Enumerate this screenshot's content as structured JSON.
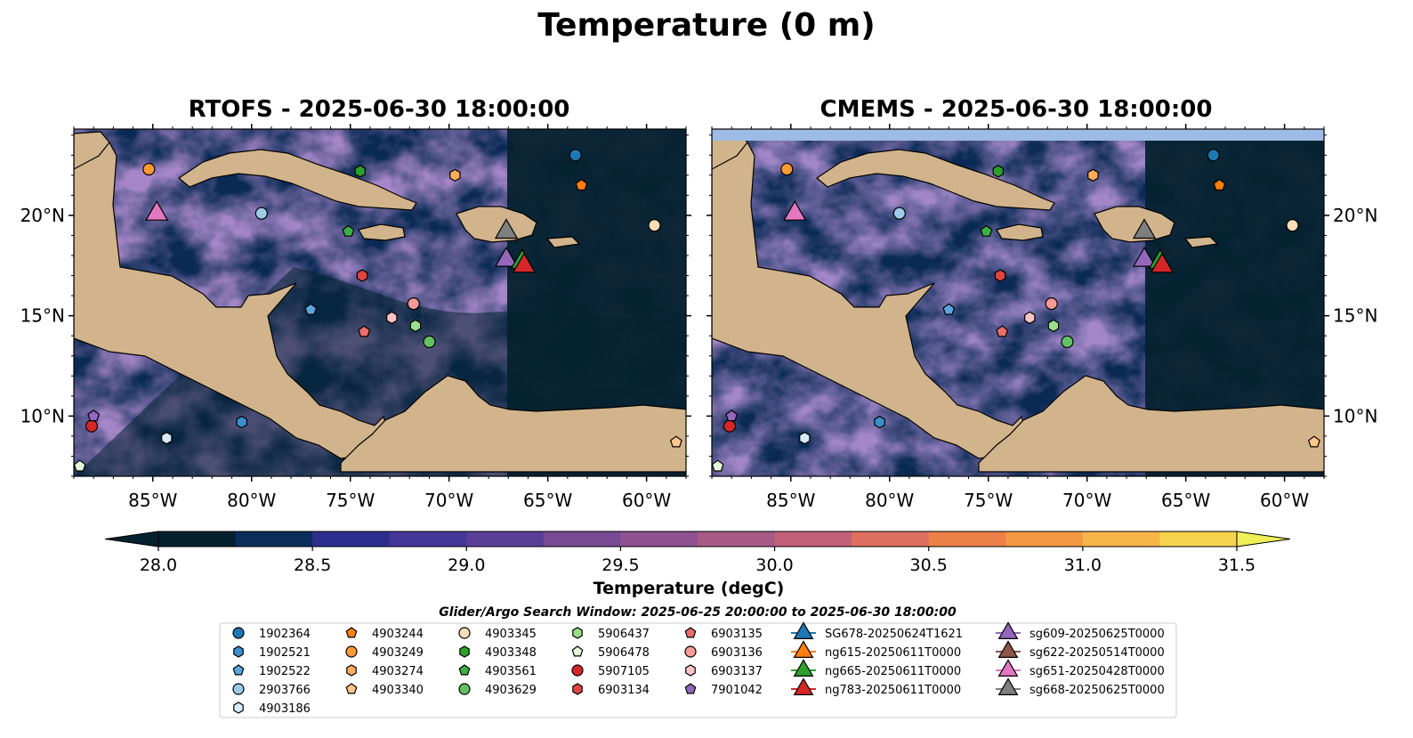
{
  "figure": {
    "title": "Temperature (0 m)"
  },
  "chart_data": [
    {
      "type": "heatmap",
      "title": "RTOFS - 2025-06-30 18:00:00",
      "xlim": [
        -89,
        -58
      ],
      "ylim": [
        7,
        24.3
      ],
      "xticks": [
        "85°W",
        "80°W",
        "75°W",
        "70°W",
        "65°W",
        "60°W"
      ],
      "yticks": [
        "10°N",
        "15°N",
        "20°N"
      ]
    },
    {
      "type": "heatmap",
      "title": "CMEMS - 2025-06-30 18:00:00",
      "xlim": [
        -89,
        -58
      ],
      "ylim": [
        7,
        24.3
      ],
      "xticks": [
        "85°W",
        "80°W",
        "75°W",
        "70°W",
        "65°W",
        "60°W"
      ],
      "yticks": [
        "10°N",
        "15°N",
        "20°N"
      ]
    }
  ],
  "colorbar": {
    "label": "Temperature (degC)",
    "min": 28.0,
    "max": 31.5,
    "ticks": [
      "28.0",
      "28.5",
      "29.0",
      "29.5",
      "30.0",
      "30.5",
      "31.0",
      "31.5"
    ],
    "colors": [
      "#04202f",
      "#0b2d5c",
      "#2d2f8e",
      "#45369a",
      "#5a3f98",
      "#774a93",
      "#8f5190",
      "#a85a87",
      "#c26079",
      "#dd6f60",
      "#ec8049",
      "#f59844",
      "#f8b648",
      "#f7d24d",
      "#eff057"
    ]
  },
  "legend": {
    "title": "Glider/Argo Search Window: 2025-06-25 20:00:00 to 2025-06-30 18:00:00",
    "items": [
      {
        "label": "1902364",
        "marker": "circle",
        "color": "#1f77b4"
      },
      {
        "label": "1902521",
        "marker": "hexagon",
        "color": "#3a8fd0"
      },
      {
        "label": "1902522",
        "marker": "pentagon",
        "color": "#5aa5e0"
      },
      {
        "label": "2903766",
        "marker": "circle",
        "color": "#9ecae9"
      },
      {
        "label": "4903186",
        "marker": "hexagon",
        "color": "#d6eaf8"
      },
      {
        "label": "4903244",
        "marker": "pentagon",
        "color": "#ff7f0e"
      },
      {
        "label": "4903249",
        "marker": "circle",
        "color": "#ff9933"
      },
      {
        "label": "4903274",
        "marker": "hexagon",
        "color": "#ffac5c"
      },
      {
        "label": "4903340",
        "marker": "pentagon",
        "color": "#ffc68a"
      },
      {
        "label": "4903345",
        "marker": "circle",
        "color": "#ffdcb8"
      },
      {
        "label": "4903348",
        "marker": "hexagon",
        "color": "#2ca02c"
      },
      {
        "label": "4903561",
        "marker": "pentagon",
        "color": "#3cb044"
      },
      {
        "label": "4903629",
        "marker": "circle",
        "color": "#63c163"
      },
      {
        "label": "5906437",
        "marker": "hexagon",
        "color": "#98df8a"
      },
      {
        "label": "5906478",
        "marker": "pentagon",
        "color": "#e4f8d8"
      },
      {
        "label": "5907105",
        "marker": "circle",
        "color": "#d62728"
      },
      {
        "label": "6903134",
        "marker": "hexagon",
        "color": "#e0453f"
      },
      {
        "label": "6903135",
        "marker": "pentagon",
        "color": "#ec6d6a"
      },
      {
        "label": "6903136",
        "marker": "circle",
        "color": "#f59a97"
      },
      {
        "label": "6903137",
        "marker": "hexagon",
        "color": "#fbc4c2"
      },
      {
        "label": "7901042",
        "marker": "pentagon",
        "color": "#9467bd"
      },
      {
        "label": "SG678-20250624T1621",
        "marker": "triangle",
        "color": "#1f77b4"
      },
      {
        "label": "ng615-20250611T0000",
        "marker": "triangle",
        "color": "#ff7f0e"
      },
      {
        "label": "ng665-20250611T0000",
        "marker": "triangle",
        "color": "#2ca02c"
      },
      {
        "label": "ng783-20250611T0000",
        "marker": "triangle",
        "color": "#d62728"
      },
      {
        "label": "sg609-20250625T0000",
        "marker": "triangle",
        "color": "#9467bd"
      },
      {
        "label": "sg622-20250514T0000",
        "marker": "triangle",
        "color": "#8c564b"
      },
      {
        "label": "sg651-20250428T0000",
        "marker": "triangle",
        "color": "#e377c2"
      },
      {
        "label": "sg668-20250625T0000",
        "marker": "triangle",
        "color": "#7f7f7f"
      }
    ]
  },
  "argo_positions": [
    {
      "id": "1902364",
      "lon": -63.6,
      "lat": 23.0
    },
    {
      "id": "1902521",
      "lon": -80.5,
      "lat": 9.7
    },
    {
      "id": "1902522",
      "lon": -77.0,
      "lat": 15.3
    },
    {
      "id": "2903766",
      "lon": -79.5,
      "lat": 20.1
    },
    {
      "id": "4903186",
      "lon": -84.3,
      "lat": 8.9
    },
    {
      "id": "4903244",
      "lon": -63.3,
      "lat": 21.5
    },
    {
      "id": "4903249",
      "lon": -85.2,
      "lat": 22.3
    },
    {
      "id": "4903274",
      "lon": -69.7,
      "lat": 22.0
    },
    {
      "id": "4903340",
      "lon": -58.5,
      "lat": 8.7
    },
    {
      "id": "4903345",
      "lon": -59.6,
      "lat": 19.5
    },
    {
      "id": "4903348",
      "lon": -74.5,
      "lat": 22.2
    },
    {
      "id": "4903561",
      "lon": -75.1,
      "lat": 19.2
    },
    {
      "id": "4903629",
      "lon": -71.0,
      "lat": 13.7
    },
    {
      "id": "5906437",
      "lon": -71.7,
      "lat": 14.5
    },
    {
      "id": "5906478",
      "lon": -88.7,
      "lat": 7.5
    },
    {
      "id": "5907105",
      "lon": -88.1,
      "lat": 9.5
    },
    {
      "id": "6903134",
      "lon": -74.4,
      "lat": 17.0
    },
    {
      "id": "6903135",
      "lon": -74.3,
      "lat": 14.2
    },
    {
      "id": "6903136",
      "lon": -71.8,
      "lat": 15.6
    },
    {
      "id": "6903137",
      "lon": -72.9,
      "lat": 14.9
    },
    {
      "id": "7901042",
      "lon": -88.0,
      "lat": 10.0
    }
  ],
  "glider_positions": [
    {
      "id": "sg651-20250428T0000",
      "lon": -84.8,
      "lat": 20.2
    },
    {
      "id": "sg668-20250625T0000",
      "lon": -67.1,
      "lat": 19.3
    },
    {
      "id": "sg609-20250625T0000",
      "lon": -67.1,
      "lat": 17.9
    },
    {
      "id": "ng665-20250611T0000",
      "lon": -66.3,
      "lat": 17.8
    },
    {
      "id": "ng783-20250611T0000",
      "lon": -66.2,
      "lat": 17.6
    }
  ]
}
